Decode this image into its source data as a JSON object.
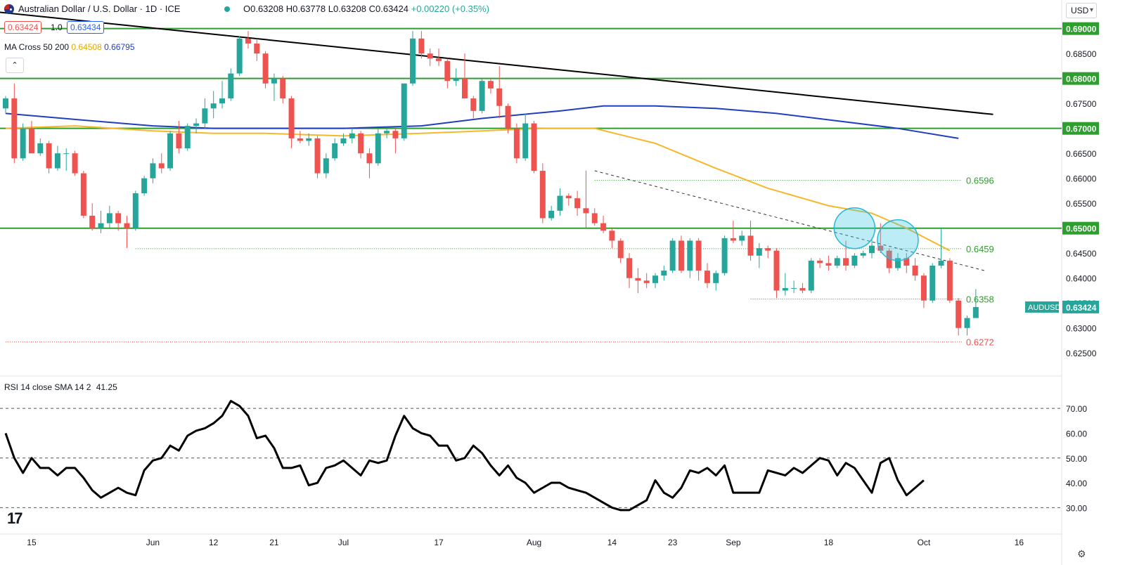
{
  "header": {
    "title": "Australian Dollar / U.S. Dollar · 1D · ICE",
    "ohlc": {
      "o": "O0.63208",
      "h": "H0.63778",
      "l": "L0.63208",
      "c": "C0.63424",
      "chg": "+0.00220 (+0.35%)"
    },
    "bid": "0.63424",
    "spread": "1.0",
    "ask": "0.63434",
    "ma_label": "MA Cross 50 200",
    "ma50_value": "0.64508",
    "ma200_value": "0.66795",
    "currency_button": "USD",
    "collapse_icon": "chevron-up-icon"
  },
  "rsi_header": {
    "label": "RSI 14 close SMA 14 2",
    "value": "41.25"
  },
  "colors": {
    "up": "#26a69a",
    "down": "#ef5350",
    "ma50": "#f5b82a",
    "ma200": "#1f3fbf",
    "level_line": "#2e9e2e",
    "trendline": "#000000",
    "rsi": "#000000"
  },
  "chart_data": [
    {
      "type": "candlestick",
      "title": "Australian Dollar / U.S. Dollar · 1D · ICE",
      "symbol_label": "AUDUSD",
      "last_price_label": "0.63424",
      "ylim": [
        0.6225,
        0.6915
      ],
      "y_ticks": [
        "0.69000",
        "0.68500",
        "0.68000",
        "0.67500",
        "0.67000",
        "0.66500",
        "0.66000",
        "0.65500",
        "0.65000",
        "0.64500",
        "0.64000",
        "0.63500",
        "0.63000",
        "0.62500"
      ],
      "x_ticks": [
        "15",
        "Jun",
        "12",
        "21",
        "Jul",
        "17",
        "Aug",
        "14",
        "23",
        "Sep",
        "18",
        "Oct",
        "16"
      ],
      "highlighted_levels": [
        "0.69000",
        "0.68000",
        "0.67000",
        "0.65000"
      ],
      "annotated_levels": [
        "0.6596",
        "0.6459",
        "0.6358",
        "0.6272"
      ],
      "ohlc": [
        [
          0.674,
          0.6765,
          0.673,
          0.676
        ],
        [
          0.676,
          0.679,
          0.663,
          0.664
        ],
        [
          0.664,
          0.671,
          0.6635,
          0.67
        ],
        [
          0.67,
          0.6715,
          0.665,
          0.665
        ],
        [
          0.665,
          0.668,
          0.6645,
          0.667
        ],
        [
          0.667,
          0.6675,
          0.661,
          0.662
        ],
        [
          0.662,
          0.6665,
          0.6615,
          0.665
        ],
        [
          0.665,
          0.666,
          0.6615,
          0.665
        ],
        [
          0.665,
          0.6655,
          0.6605,
          0.661
        ],
        [
          0.661,
          0.6615,
          0.652,
          0.6525
        ],
        [
          0.6525,
          0.655,
          0.6495,
          0.65
        ],
        [
          0.65,
          0.6535,
          0.649,
          0.651
        ],
        [
          0.651,
          0.6545,
          0.65,
          0.653
        ],
        [
          0.653,
          0.6535,
          0.6495,
          0.651
        ],
        [
          0.651,
          0.6525,
          0.646,
          0.65
        ],
        [
          0.65,
          0.6575,
          0.6495,
          0.657
        ],
        [
          0.657,
          0.6605,
          0.6565,
          0.66
        ],
        [
          0.66,
          0.664,
          0.659,
          0.663
        ],
        [
          0.663,
          0.665,
          0.661,
          0.662
        ],
        [
          0.662,
          0.6695,
          0.6615,
          0.669
        ],
        [
          0.669,
          0.6715,
          0.665,
          0.666
        ],
        [
          0.666,
          0.671,
          0.6655,
          0.6705
        ],
        [
          0.6705,
          0.672,
          0.669,
          0.671
        ],
        [
          0.671,
          0.676,
          0.67,
          0.674
        ],
        [
          0.674,
          0.6775,
          0.672,
          0.675
        ],
        [
          0.675,
          0.6795,
          0.674,
          0.676
        ],
        [
          0.676,
          0.682,
          0.6755,
          0.681
        ],
        [
          0.681,
          0.6885,
          0.6805,
          0.688
        ],
        [
          0.688,
          0.6895,
          0.686,
          0.687
        ],
        [
          0.687,
          0.688,
          0.6835,
          0.685
        ],
        [
          0.685,
          0.6855,
          0.678,
          0.679
        ],
        [
          0.679,
          0.681,
          0.6755,
          0.68
        ],
        [
          0.68,
          0.6805,
          0.675,
          0.676
        ],
        [
          0.676,
          0.6765,
          0.666,
          0.668
        ],
        [
          0.668,
          0.6695,
          0.667,
          0.6675
        ],
        [
          0.6675,
          0.669,
          0.6665,
          0.668
        ],
        [
          0.668,
          0.6685,
          0.66,
          0.661
        ],
        [
          0.661,
          0.665,
          0.66,
          0.664
        ],
        [
          0.664,
          0.668,
          0.6635,
          0.667
        ],
        [
          0.667,
          0.669,
          0.6665,
          0.668
        ],
        [
          0.668,
          0.67,
          0.667,
          0.669
        ],
        [
          0.669,
          0.6695,
          0.664,
          0.665
        ],
        [
          0.665,
          0.666,
          0.66,
          0.663
        ],
        [
          0.663,
          0.67,
          0.6625,
          0.669
        ],
        [
          0.669,
          0.67,
          0.668,
          0.6695
        ],
        [
          0.6695,
          0.67,
          0.665,
          0.668
        ],
        [
          0.668,
          0.679,
          0.6675,
          0.679
        ],
        [
          0.679,
          0.6895,
          0.6785,
          0.688
        ],
        [
          0.688,
          0.6895,
          0.684,
          0.685
        ],
        [
          0.685,
          0.686,
          0.6825,
          0.684
        ],
        [
          0.684,
          0.686,
          0.6825,
          0.6835
        ],
        [
          0.6835,
          0.684,
          0.678,
          0.6795
        ],
        [
          0.6795,
          0.682,
          0.6785,
          0.68
        ],
        [
          0.68,
          0.685,
          0.676,
          0.676
        ],
        [
          0.676,
          0.6765,
          0.672,
          0.6735
        ],
        [
          0.6735,
          0.68,
          0.673,
          0.6795
        ],
        [
          0.6795,
          0.68,
          0.677,
          0.678
        ],
        [
          0.678,
          0.6825,
          0.672,
          0.6745
        ],
        [
          0.6745,
          0.675,
          0.669,
          0.67
        ],
        [
          0.67,
          0.671,
          0.663,
          0.664
        ],
        [
          0.664,
          0.673,
          0.6635,
          0.671
        ],
        [
          0.671,
          0.6715,
          0.661,
          0.6615
        ],
        [
          0.6615,
          0.663,
          0.651,
          0.652
        ],
        [
          0.652,
          0.6545,
          0.6515,
          0.6535
        ],
        [
          0.6535,
          0.658,
          0.6525,
          0.6565
        ],
        [
          0.6565,
          0.657,
          0.6545,
          0.656
        ],
        [
          0.656,
          0.6575,
          0.6525,
          0.654
        ],
        [
          0.654,
          0.6615,
          0.65,
          0.653
        ],
        [
          0.653,
          0.654,
          0.6505,
          0.651
        ],
        [
          0.651,
          0.6525,
          0.649,
          0.6495
        ],
        [
          0.6495,
          0.65,
          0.646,
          0.6475
        ],
        [
          0.6475,
          0.648,
          0.643,
          0.644
        ],
        [
          0.644,
          0.645,
          0.638,
          0.64
        ],
        [
          0.64,
          0.642,
          0.637,
          0.6395
        ],
        [
          0.6395,
          0.641,
          0.638,
          0.639
        ],
        [
          0.639,
          0.641,
          0.638,
          0.6405
        ],
        [
          0.6405,
          0.6425,
          0.6395,
          0.6415
        ],
        [
          0.6415,
          0.648,
          0.641,
          0.6475
        ],
        [
          0.6475,
          0.6485,
          0.641,
          0.6415
        ],
        [
          0.6415,
          0.648,
          0.64,
          0.6475
        ],
        [
          0.6475,
          0.648,
          0.6395,
          0.6415
        ],
        [
          0.6415,
          0.643,
          0.638,
          0.639
        ],
        [
          0.639,
          0.6415,
          0.6375,
          0.641
        ],
        [
          0.641,
          0.6485,
          0.6405,
          0.648
        ],
        [
          0.648,
          0.6515,
          0.647,
          0.6475
        ],
        [
          0.6475,
          0.6495,
          0.6465,
          0.6485
        ],
        [
          0.6485,
          0.6515,
          0.6435,
          0.6445
        ],
        [
          0.6445,
          0.647,
          0.642,
          0.646
        ],
        [
          0.646,
          0.6465,
          0.644,
          0.6455
        ],
        [
          0.6455,
          0.646,
          0.636,
          0.6375
        ],
        [
          0.6375,
          0.641,
          0.6365,
          0.638
        ],
        [
          0.638,
          0.6395,
          0.637,
          0.638
        ],
        [
          0.638,
          0.639,
          0.637,
          0.6375
        ],
        [
          0.6375,
          0.644,
          0.637,
          0.6435
        ],
        [
          0.6435,
          0.644,
          0.642,
          0.643
        ],
        [
          0.643,
          0.6445,
          0.6415,
          0.6425
        ],
        [
          0.6425,
          0.6445,
          0.642,
          0.644
        ],
        [
          0.644,
          0.6475,
          0.6415,
          0.6425
        ],
        [
          0.6425,
          0.645,
          0.642,
          0.6445
        ],
        [
          0.6445,
          0.6455,
          0.644,
          0.645
        ],
        [
          0.645,
          0.648,
          0.644,
          0.6465
        ],
        [
          0.6465,
          0.651,
          0.645,
          0.6455
        ],
        [
          0.6455,
          0.646,
          0.641,
          0.642
        ],
        [
          0.642,
          0.645,
          0.6415,
          0.644
        ],
        [
          0.644,
          0.645,
          0.641,
          0.6425
        ],
        [
          0.6425,
          0.644,
          0.6395,
          0.6405
        ],
        [
          0.6405,
          0.641,
          0.634,
          0.6355
        ],
        [
          0.6355,
          0.643,
          0.635,
          0.6425
        ],
        [
          0.6425,
          0.65,
          0.642,
          0.6435
        ],
        [
          0.6435,
          0.644,
          0.635,
          0.6355
        ],
        [
          0.6355,
          0.636,
          0.6285,
          0.63
        ],
        [
          0.63,
          0.6325,
          0.6285,
          0.632
        ],
        [
          0.632,
          0.6378,
          0.632,
          0.6342
        ]
      ],
      "ma50": [
        [
          0,
          0.67
        ],
        [
          8,
          0.6705
        ],
        [
          17,
          0.6695
        ],
        [
          24,
          0.669
        ],
        [
          30,
          0.669
        ],
        [
          39,
          0.6685
        ],
        [
          48,
          0.669
        ],
        [
          55,
          0.6695
        ],
        [
          62,
          0.67
        ],
        [
          68,
          0.67
        ],
        [
          75,
          0.667
        ],
        [
          82,
          0.662
        ],
        [
          88,
          0.658
        ],
        [
          95,
          0.6545
        ],
        [
          100,
          0.653
        ],
        [
          104,
          0.65
        ],
        [
          109,
          0.6455
        ]
      ],
      "ma200": [
        [
          0,
          0.673
        ],
        [
          10,
          0.6715
        ],
        [
          17,
          0.6705
        ],
        [
          24,
          0.67
        ],
        [
          39,
          0.67
        ],
        [
          48,
          0.6705
        ],
        [
          55,
          0.672
        ],
        [
          64,
          0.6735
        ],
        [
          69,
          0.6745
        ],
        [
          75,
          0.6745
        ],
        [
          82,
          0.674
        ],
        [
          89,
          0.673
        ],
        [
          96,
          0.6715
        ],
        [
          103,
          0.67
        ],
        [
          110,
          0.668
        ]
      ],
      "trendline_main": [
        [
          -2,
          0.6935
        ],
        [
          114,
          0.6728
        ]
      ],
      "trendline_dashed": [
        [
          68,
          0.6615
        ],
        [
          113,
          0.6415
        ]
      ],
      "level_lines": [
        0.69,
        0.68,
        0.67,
        0.65
      ],
      "level_dotted_green": [
        {
          "price": 0.6596,
          "from": 68
        },
        {
          "price": 0.6459,
          "from": 15
        },
        {
          "price": 0.6358,
          "from": 86
        }
      ],
      "level_dotted_red": {
        "price": 0.6272,
        "from": 0
      },
      "highlight_circles": [
        [
          98,
          0.65
        ],
        [
          103,
          0.6476
        ]
      ]
    },
    {
      "type": "line",
      "title": "RSI 14 close SMA 14 2",
      "ylim": [
        25,
        76
      ],
      "y_ticks": [
        "70.00",
        "60.00",
        "50.00",
        "40.00",
        "30.00"
      ],
      "guides": [
        70,
        50,
        30
      ],
      "values": [
        60,
        50,
        44,
        50,
        46,
        46,
        43,
        46,
        46,
        42,
        37,
        34,
        36,
        38,
        36,
        35,
        45,
        49,
        50,
        55,
        53,
        59,
        61,
        62,
        64,
        67,
        73,
        71,
        67,
        58,
        59,
        54,
        46,
        46,
        47,
        39,
        40,
        46,
        47,
        49,
        46,
        43,
        49,
        48,
        49,
        59,
        67,
        62,
        60,
        59,
        55,
        55,
        49,
        50,
        55,
        52,
        47,
        43,
        47,
        42,
        40,
        36,
        38,
        40,
        40,
        38,
        37,
        36,
        34,
        32,
        30,
        29,
        29,
        31,
        33,
        41,
        36,
        34,
        38,
        45,
        44,
        46,
        43,
        47,
        36,
        36,
        36,
        36,
        45,
        44,
        43,
        46,
        44,
        47,
        50,
        49,
        43,
        48,
        46,
        41,
        36,
        48,
        50,
        41,
        35,
        38,
        41
      ]
    }
  ]
}
